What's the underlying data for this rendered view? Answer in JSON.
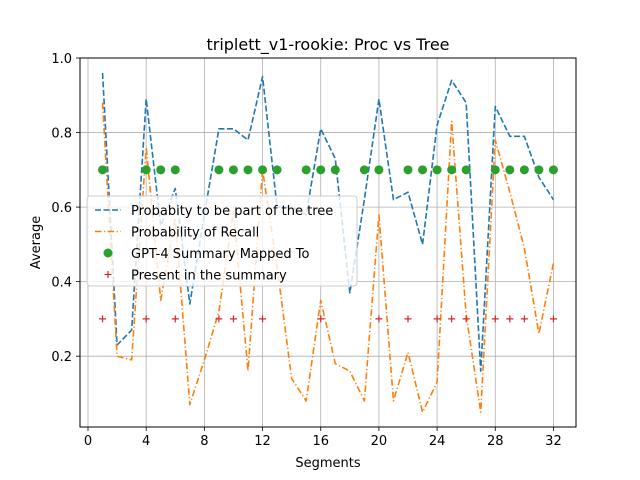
{
  "chart_data": {
    "type": "line",
    "title": "triplett_v1-rookie: Proc vs Tree",
    "xlabel": "Segments",
    "ylabel": "Average",
    "xlim": [
      -0.55,
      33.55
    ],
    "ylim": [
      0.01,
      1.0
    ],
    "xticks": [
      0,
      4,
      8,
      12,
      16,
      20,
      24,
      28,
      32
    ],
    "yticks": [
      0.2,
      0.4,
      0.6,
      0.8,
      1.0
    ],
    "ytick_labels": [
      "0.2",
      "0.4",
      "0.6",
      "0.8",
      "1.0"
    ],
    "grid": true,
    "legend_position": "center-left",
    "series": [
      {
        "name": "Probabity to be part of the tree",
        "style": "dashed-line",
        "color": "#1f77b4",
        "x": [
          1,
          2,
          3,
          4,
          5,
          6,
          7,
          8,
          9,
          10,
          11,
          12,
          13,
          14,
          15,
          16,
          17,
          18,
          19,
          20,
          21,
          22,
          23,
          24,
          25,
          26,
          27,
          28,
          29,
          30,
          31,
          32
        ],
        "y": [
          0.96,
          0.23,
          0.27,
          0.89,
          0.55,
          0.65,
          0.34,
          0.58,
          0.81,
          0.81,
          0.78,
          0.95,
          0.6,
          0.6,
          0.58,
          0.81,
          0.73,
          0.37,
          0.62,
          0.89,
          0.62,
          0.64,
          0.5,
          0.82,
          0.94,
          0.88,
          0.16,
          0.87,
          0.79,
          0.79,
          0.68,
          0.62
        ]
      },
      {
        "name": "Probability of Recall",
        "style": "dashdot-line",
        "color": "#ff7f0e",
        "x": [
          1,
          2,
          3,
          4,
          5,
          6,
          7,
          8,
          9,
          10,
          11,
          12,
          13,
          14,
          15,
          16,
          17,
          18,
          19,
          20,
          21,
          22,
          23,
          24,
          25,
          26,
          27,
          28,
          29,
          30,
          31,
          32
        ],
        "y": [
          0.88,
          0.2,
          0.19,
          0.76,
          0.35,
          0.57,
          0.07,
          0.19,
          0.32,
          0.59,
          0.16,
          0.7,
          0.44,
          0.14,
          0.08,
          0.35,
          0.18,
          0.16,
          0.08,
          0.58,
          0.08,
          0.21,
          0.05,
          0.13,
          0.83,
          0.31,
          0.05,
          0.78,
          0.64,
          0.49,
          0.26,
          0.45
        ]
      },
      {
        "name": "GPT-4 Summary Mapped To",
        "style": "circle-markers",
        "color": "#2ca02c",
        "x": [
          1,
          4,
          5,
          6,
          9,
          10,
          11,
          12,
          13,
          15,
          16,
          17,
          19,
          20,
          22,
          23,
          24,
          25,
          26,
          28,
          29,
          30,
          31,
          32
        ],
        "y": [
          0.7,
          0.7,
          0.7,
          0.7,
          0.7,
          0.7,
          0.7,
          0.7,
          0.7,
          0.7,
          0.7,
          0.7,
          0.7,
          0.7,
          0.7,
          0.7,
          0.7,
          0.7,
          0.7,
          0.7,
          0.7,
          0.7,
          0.7,
          0.7
        ]
      },
      {
        "name": "Present in the summary",
        "style": "plus-markers",
        "color": "#d62728",
        "x": [
          1,
          4,
          6,
          9,
          10,
          12,
          16,
          20,
          22,
          24,
          25,
          26,
          28,
          29,
          30,
          32
        ],
        "y": [
          0.3,
          0.3,
          0.3,
          0.3,
          0.3,
          0.3,
          0.3,
          0.3,
          0.3,
          0.3,
          0.3,
          0.3,
          0.3,
          0.3,
          0.3,
          0.3
        ]
      }
    ]
  }
}
